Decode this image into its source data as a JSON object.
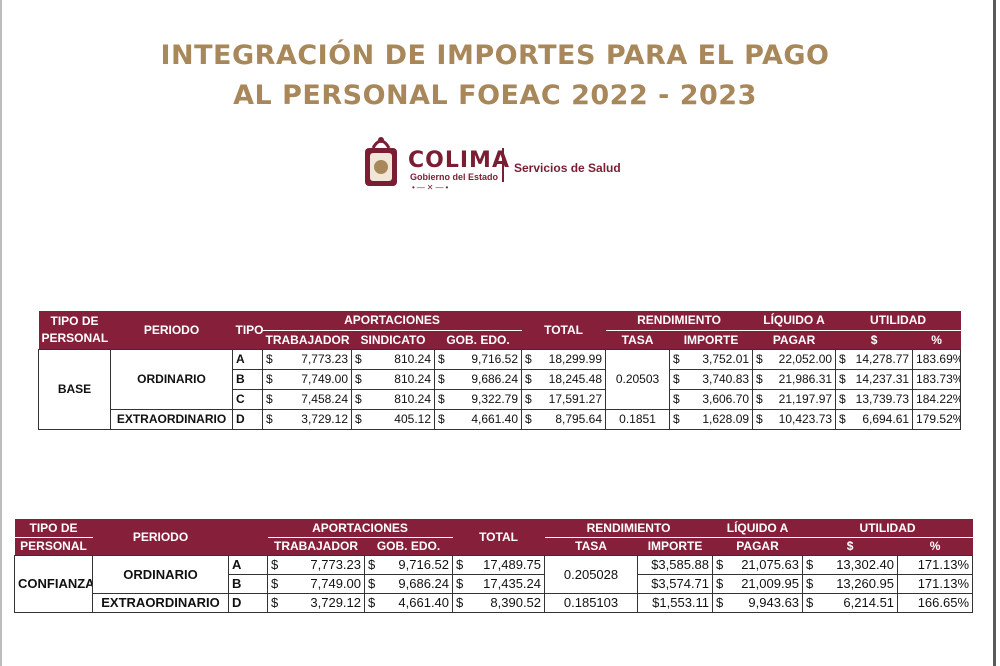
{
  "title_line1": "INTEGRACIÓN DE IMPORTES PARA EL PAGO",
  "title_line2": "AL PERSONAL FOEAC 2022 - 2023",
  "logo": {
    "name": "COLIMA",
    "sub": "Gobierno del Estado",
    "dept": "Servicios de Salud",
    "seal": "coat-of-arms-seal",
    "brand_color": "#7a1e33"
  },
  "table1": {
    "headers": {
      "tipo_personal": "TIPO DE PERSONAL",
      "periodo": "PERIODO",
      "tipo": "TIPO",
      "aportaciones": "APORTACIONES",
      "trabajador": "TRABAJADOR",
      "sindicato": "SINDICATO",
      "gob_edo": "GOB. EDO.",
      "total": "TOTAL",
      "rendimiento": "RENDIMIENTO",
      "tasa": "TASA",
      "importe": "IMPORTE",
      "liquido": "LÍQUIDO A",
      "pagar": "PAGAR",
      "utilidad": "UTILIDAD",
      "dollar": "$",
      "pct": "%"
    },
    "personal": "BASE",
    "ordinario": "ORDINARIO",
    "extraordinario": "EXTRAORDINARIO",
    "tasa_ordinario": "0.20503",
    "tasa_extra": "0.1851",
    "currency": "$",
    "rows": [
      {
        "tipo": "A",
        "trabajador": "7,773.23",
        "sindicato": "810.24",
        "gob": "9,716.52",
        "total": "18,299.99",
        "importe": "3,752.01",
        "liquido": "22,052.00",
        "util": "14,278.77",
        "pct": "183.69%"
      },
      {
        "tipo": "B",
        "trabajador": "7,749.00",
        "sindicato": "810.24",
        "gob": "9,686.24",
        "total": "18,245.48",
        "importe": "3,740.83",
        "liquido": "21,986.31",
        "util": "14,237.31",
        "pct": "183.73%"
      },
      {
        "tipo": "C",
        "trabajador": "7,458.24",
        "sindicato": "810.24",
        "gob": "9,322.79",
        "total": "17,591.27",
        "importe": "3,606.70",
        "liquido": "21,197.97",
        "util": "13,739.73",
        "pct": "184.22%"
      },
      {
        "tipo": "D",
        "trabajador": "3,729.12",
        "sindicato": "405.12",
        "gob": "4,661.40",
        "total": "8,795.64",
        "importe": "1,628.09",
        "liquido": "10,423.73",
        "util": "6,694.61",
        "pct": "179.52%"
      }
    ]
  },
  "table2": {
    "headers": {
      "tipo_de": "TIPO DE",
      "personal": "PERSONAL",
      "periodo": "PERIODO",
      "aportaciones": "APORTACIONES",
      "trabajador": "TRABAJADOR",
      "gob_edo": "GOB. EDO.",
      "total": "TOTAL",
      "rendimiento": "RENDIMIENTO",
      "tasa": "TASA",
      "importe": "IMPORTE",
      "liquido": "LÍQUIDO A",
      "pagar": "PAGAR",
      "utilidad": "UTILIDAD",
      "dollar": "$",
      "pct": "%"
    },
    "personal": "CONFIANZA",
    "ordinario": "ORDINARIO",
    "extraordinario": "EXTRAORDINARIO",
    "tasa_ordinario": "0.205028",
    "tasa_extra": "0.185103",
    "currency": "$",
    "rows": [
      {
        "tipo": "A",
        "trabajador": "7,773.23",
        "gob": "9,716.52",
        "total": "17,489.75",
        "importe": "$3,585.88",
        "liquido": "21,075.63",
        "util": "13,302.40",
        "pct": "171.13%"
      },
      {
        "tipo": "B",
        "trabajador": "7,749.00",
        "gob": "9,686.24",
        "total": "17,435.24",
        "importe": "$3,574.71",
        "liquido": "21,009.95",
        "util": "13,260.95",
        "pct": "171.13%"
      },
      {
        "tipo": "D",
        "trabajador": "3,729.12",
        "gob": "4,661.40",
        "total": "8,390.52",
        "importe": "$1,553.11",
        "liquido": "9,943.63",
        "util": "6,214.51",
        "pct": "166.65%"
      }
    ]
  }
}
